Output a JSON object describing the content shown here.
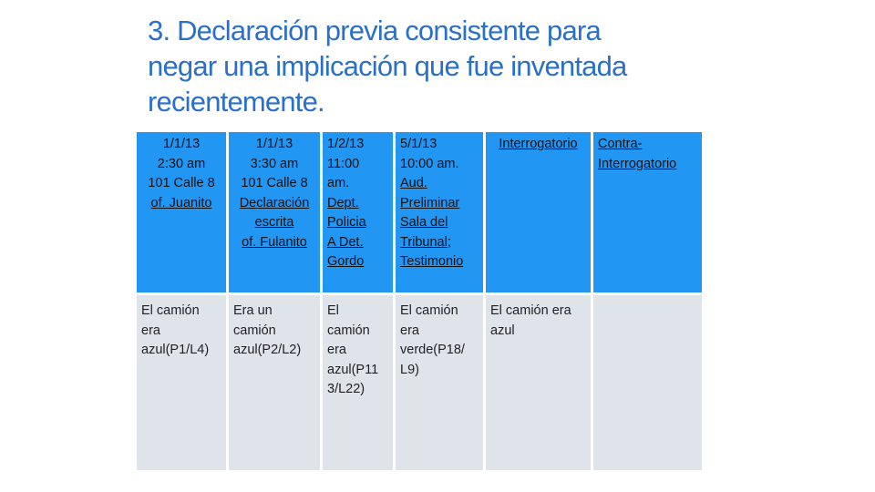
{
  "title": {
    "line1": "3. Declaración previa consistente para",
    "line2": "negar una implicación que fue inventada",
    "line3": "recientemente."
  },
  "table": {
    "header": [
      {
        "lines": [
          "1/1/13",
          "2:30 am",
          "101 Calle 8",
          "of. Juanito"
        ]
      },
      {
        "lines": [
          "1/1/13",
          "3:30 am",
          "101 Calle 8",
          "Declaración",
          "escrita",
          "of. Fulanito"
        ]
      },
      {
        "lines": [
          "1/2/13",
          "11:00",
          "am.",
          "Dept.",
          "Policia",
          "A Det.",
          "Gordo"
        ]
      },
      {
        "lines": [
          "5/1/13",
          "10:00 am.",
          "Aud.",
          "Preliminar",
          "Sala del",
          "Tribunal;",
          "Testimonio"
        ]
      },
      {
        "lines": [
          "Interrogatorio"
        ]
      },
      {
        "lines": [
          "Contra-",
          "Interrogatorio"
        ]
      }
    ],
    "row": [
      {
        "lines": [
          "El camión",
          "era",
          "azul(P1/L4)"
        ]
      },
      {
        "lines": [
          "Era un",
          "camión",
          "azul(P2/L2)"
        ]
      },
      {
        "lines": [
          "El",
          "camión",
          "era",
          "azul(P11",
          "3/L22)"
        ]
      },
      {
        "lines": [
          "El camión",
          "era",
          "verde(P18/",
          "L9)"
        ]
      },
      {
        "lines": [
          "El camión era",
          "azul"
        ]
      },
      {
        "lines": []
      }
    ]
  }
}
